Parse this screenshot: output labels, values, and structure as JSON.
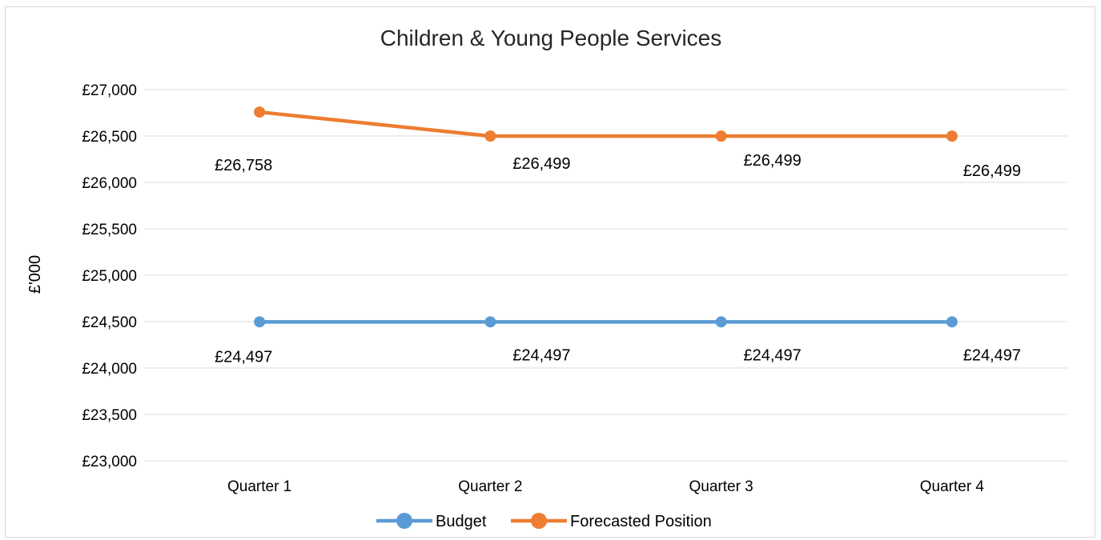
{
  "chart_data": {
    "type": "line",
    "title": "Children & Young People Services",
    "ylabel": "£'000",
    "xlabel": "",
    "categories": [
      "Quarter 1",
      "Quarter 2",
      "Quarter 3",
      "Quarter 4"
    ],
    "ylim": [
      23000,
      27000
    ],
    "yticks": [
      23000,
      23500,
      24000,
      24500,
      25000,
      25500,
      26000,
      26500,
      27000
    ],
    "ytick_labels": [
      "£23,000",
      "£23,500",
      "£24,000",
      "£24,500",
      "£25,000",
      "£25,500",
      "£26,000",
      "£26,500",
      "£27,000"
    ],
    "grid": true,
    "legend": "bottom",
    "series": [
      {
        "name": "Budget",
        "color": "#5b9bd5",
        "values": [
          24497,
          24497,
          24497,
          24497
        ],
        "labels": [
          "£24,497",
          "£24,497",
          "£24,497",
          "£24,497"
        ]
      },
      {
        "name": "Forecasted Position",
        "color": "#ed7d31",
        "values": [
          26758,
          26499,
          26499,
          26499
        ],
        "labels": [
          "£26,758",
          "£26,499",
          "£26,499",
          "£26,499"
        ]
      }
    ]
  }
}
